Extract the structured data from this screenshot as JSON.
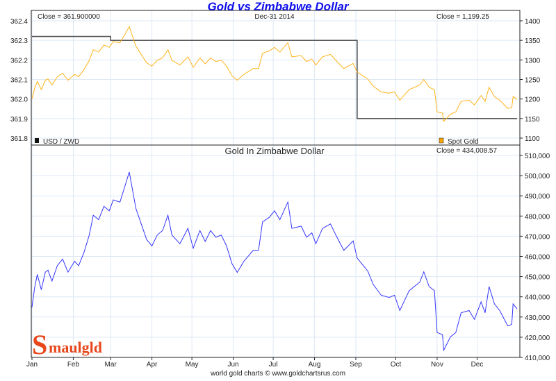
{
  "title": "Gold vs Zimbabwe Dollar",
  "footer": "world gold charts © www.goldchartsrus.com",
  "logo_text": "Smaulgld",
  "chart_data": [
    {
      "type": "line",
      "date_label": "Dec-31  2014",
      "left_close_label": "Close = 361.900000",
      "right_close_label": "Close = 1,199.25",
      "left_axis": {
        "ticks": [
          "362.4",
          "362.3",
          "362.2",
          "362.1",
          "362.0",
          "361.9",
          "361.8"
        ],
        "ylim": [
          361.8,
          362.4
        ]
      },
      "right_axis": {
        "ticks": [
          "1400",
          "1350",
          "1300",
          "1250",
          "1200",
          "1150",
          "1100"
        ],
        "ylim": [
          1100,
          1400
        ]
      },
      "grid": true,
      "legend": {
        "placement": "bottom",
        "left": "USD / ZWD",
        "right": "Spot Gold"
      },
      "series": [
        {
          "name": "USD / ZWD",
          "axis": "left",
          "color": "#555555",
          "step": true,
          "points": [
            [
              "2014-01-01",
              362.32
            ],
            [
              "2014-02-28",
              362.32
            ],
            [
              "2014-03-01",
              362.3
            ],
            [
              "2014-09-01",
              362.3
            ],
            [
              "2014-09-02",
              361.9
            ],
            [
              "2014-12-31",
              361.9
            ]
          ]
        },
        {
          "name": "Spot Gold",
          "axis": "right",
          "color": "#ffb31a",
          "points": [
            [
              "2014-01-01",
              1200
            ],
            [
              "2014-01-03",
              1227
            ],
            [
              "2014-01-05",
              1245
            ],
            [
              "2014-01-08",
              1224
            ],
            [
              "2014-01-11",
              1248
            ],
            [
              "2014-01-13",
              1251
            ],
            [
              "2014-01-16",
              1236
            ],
            [
              "2014-01-20",
              1257
            ],
            [
              "2014-01-24",
              1266
            ],
            [
              "2014-01-28",
              1248
            ],
            [
              "2014-02-02",
              1263
            ],
            [
              "2014-02-05",
              1257
            ],
            [
              "2014-02-09",
              1275
            ],
            [
              "2014-02-13",
              1299
            ],
            [
              "2014-02-16",
              1326
            ],
            [
              "2014-02-20",
              1320
            ],
            [
              "2014-02-24",
              1338
            ],
            [
              "2014-02-28",
              1332
            ],
            [
              "2014-03-03",
              1347
            ],
            [
              "2014-03-08",
              1344
            ],
            [
              "2014-03-12",
              1367
            ],
            [
              "2014-03-15",
              1385
            ],
            [
              "2014-03-20",
              1335
            ],
            [
              "2014-03-24",
              1314
            ],
            [
              "2014-03-28",
              1293
            ],
            [
              "2014-04-01",
              1284
            ],
            [
              "2014-04-05",
              1299
            ],
            [
              "2014-04-09",
              1305
            ],
            [
              "2014-04-13",
              1326
            ],
            [
              "2014-04-16",
              1299
            ],
            [
              "2014-04-22",
              1287
            ],
            [
              "2014-04-28",
              1308
            ],
            [
              "2014-05-02",
              1281
            ],
            [
              "2014-05-07",
              1305
            ],
            [
              "2014-05-11",
              1290
            ],
            [
              "2014-05-15",
              1305
            ],
            [
              "2014-05-19",
              1296
            ],
            [
              "2014-05-23",
              1299
            ],
            [
              "2014-05-27",
              1284
            ],
            [
              "2014-05-31",
              1260
            ],
            [
              "2014-06-04",
              1248
            ],
            [
              "2014-06-09",
              1263
            ],
            [
              "2014-06-16",
              1278
            ],
            [
              "2014-06-20",
              1278
            ],
            [
              "2014-06-23",
              1317
            ],
            [
              "2014-06-28",
              1323
            ],
            [
              "2014-07-02",
              1332
            ],
            [
              "2014-07-06",
              1320
            ],
            [
              "2014-07-12",
              1344
            ],
            [
              "2014-07-15",
              1308
            ],
            [
              "2014-07-22",
              1311
            ],
            [
              "2014-07-26",
              1296
            ],
            [
              "2014-07-30",
              1302
            ],
            [
              "2014-08-02",
              1287
            ],
            [
              "2014-08-07",
              1308
            ],
            [
              "2014-08-13",
              1314
            ],
            [
              "2014-08-17",
              1299
            ],
            [
              "2014-08-23",
              1278
            ],
            [
              "2014-08-30",
              1291
            ],
            [
              "2014-09-02",
              1269
            ],
            [
              "2014-09-10",
              1251
            ],
            [
              "2014-09-14",
              1233
            ],
            [
              "2014-09-20",
              1218
            ],
            [
              "2014-09-26",
              1215
            ],
            [
              "2014-09-30",
              1218
            ],
            [
              "2014-10-04",
              1197
            ],
            [
              "2014-10-11",
              1224
            ],
            [
              "2014-10-19",
              1236
            ],
            [
              "2014-10-22",
              1250
            ],
            [
              "2014-10-26",
              1230
            ],
            [
              "2014-10-30",
              1224
            ],
            [
              "2014-11-01",
              1167
            ],
            [
              "2014-11-05",
              1164
            ],
            [
              "2014-11-06",
              1143
            ],
            [
              "2014-11-11",
              1161
            ],
            [
              "2014-11-15",
              1167
            ],
            [
              "2014-11-19",
              1194
            ],
            [
              "2014-11-25",
              1197
            ],
            [
              "2014-11-29",
              1185
            ],
            [
              "2014-12-04",
              1209
            ],
            [
              "2014-12-07",
              1194
            ],
            [
              "2014-12-10",
              1230
            ],
            [
              "2014-12-14",
              1206
            ],
            [
              "2014-12-18",
              1197
            ],
            [
              "2014-12-24",
              1176
            ],
            [
              "2014-12-27",
              1178
            ],
            [
              "2014-12-28",
              1206
            ],
            [
              "2014-12-31",
              1199.25
            ]
          ]
        }
      ]
    },
    {
      "type": "line",
      "title": "Gold In Zimbabwe Dollar",
      "close_label": "Close = 434,008.57",
      "right_axis": {
        "ticks": [
          "510,000",
          "500,000",
          "490,000",
          "480,000",
          "470,000",
          "460,000",
          "450,000",
          "440,000",
          "430,000",
          "420,000",
          "410,000"
        ],
        "ylim": [
          410000,
          510000
        ]
      },
      "x_ticks": [
        "Jan",
        "Feb",
        "Mar",
        "Apr",
        "May",
        "Jun",
        "Jul",
        "Aug",
        "Sep",
        "Oct",
        "Nov",
        "Dec"
      ],
      "grid": true,
      "series": [
        {
          "color": "#3333ff",
          "points": [
            [
              "2014-01-01",
              434800
            ],
            [
              "2014-01-03",
              444500
            ],
            [
              "2014-01-05",
              451100
            ],
            [
              "2014-01-08",
              443500
            ],
            [
              "2014-01-11",
              452200
            ],
            [
              "2014-01-13",
              453200
            ],
            [
              "2014-01-16",
              447800
            ],
            [
              "2014-01-20",
              455400
            ],
            [
              "2014-01-24",
              458700
            ],
            [
              "2014-01-28",
              452200
            ],
            [
              "2014-02-02",
              457600
            ],
            [
              "2014-02-05",
              455400
            ],
            [
              "2014-02-09",
              461900
            ],
            [
              "2014-02-13",
              470600
            ],
            [
              "2014-02-16",
              480400
            ],
            [
              "2014-02-20",
              478200
            ],
            [
              "2014-02-24",
              484800
            ],
            [
              "2014-02-28",
              482600
            ],
            [
              "2014-03-03",
              488000
            ],
            [
              "2014-03-08",
              486900
            ],
            [
              "2014-03-12",
              495300
            ],
            [
              "2014-03-15",
              501800
            ],
            [
              "2014-03-20",
              483700
            ],
            [
              "2014-03-24",
              476100
            ],
            [
              "2014-03-28",
              468400
            ],
            [
              "2014-04-01",
              465200
            ],
            [
              "2014-04-05",
              470600
            ],
            [
              "2014-04-09",
              472800
            ],
            [
              "2014-04-13",
              480400
            ],
            [
              "2014-04-16",
              470600
            ],
            [
              "2014-04-22",
              466300
            ],
            [
              "2014-04-28",
              473900
            ],
            [
              "2014-05-02",
              464100
            ],
            [
              "2014-05-07",
              472800
            ],
            [
              "2014-05-11",
              467400
            ],
            [
              "2014-05-15",
              472800
            ],
            [
              "2014-05-19",
              469500
            ],
            [
              "2014-05-23",
              470600
            ],
            [
              "2014-05-27",
              465200
            ],
            [
              "2014-05-31",
              456500
            ],
            [
              "2014-06-04",
              452100
            ],
            [
              "2014-06-09",
              457600
            ],
            [
              "2014-06-16",
              463000
            ],
            [
              "2014-06-20",
              463000
            ],
            [
              "2014-06-23",
              477100
            ],
            [
              "2014-06-28",
              479300
            ],
            [
              "2014-07-02",
              482600
            ],
            [
              "2014-07-06",
              478200
            ],
            [
              "2014-07-12",
              486900
            ],
            [
              "2014-07-15",
              473900
            ],
            [
              "2014-07-22",
              475000
            ],
            [
              "2014-07-26",
              469500
            ],
            [
              "2014-07-30",
              471700
            ],
            [
              "2014-08-02",
              466300
            ],
            [
              "2014-08-07",
              473900
            ],
            [
              "2014-08-13",
              476100
            ],
            [
              "2014-08-17",
              470600
            ],
            [
              "2014-08-23",
              463000
            ],
            [
              "2014-08-30",
              467700
            ],
            [
              "2014-09-02",
              459200
            ],
            [
              "2014-09-10",
              452700
            ],
            [
              "2014-09-14",
              446200
            ],
            [
              "2014-09-20",
              440800
            ],
            [
              "2014-09-26",
              439700
            ],
            [
              "2014-09-30",
              440800
            ],
            [
              "2014-10-04",
              433200
            ],
            [
              "2014-10-11",
              443000
            ],
            [
              "2014-10-19",
              447300
            ],
            [
              "2014-10-22",
              452400
            ],
            [
              "2014-10-26",
              445100
            ],
            [
              "2014-10-30",
              443000
            ],
            [
              "2014-11-01",
              422300
            ],
            [
              "2014-11-05",
              421300
            ],
            [
              "2014-11-06",
              413600
            ],
            [
              "2014-11-11",
              420200
            ],
            [
              "2014-11-15",
              422300
            ],
            [
              "2014-11-19",
              432100
            ],
            [
              "2014-11-25",
              433200
            ],
            [
              "2014-11-29",
              428800
            ],
            [
              "2014-12-04",
              437500
            ],
            [
              "2014-12-07",
              432100
            ],
            [
              "2014-12-10",
              445100
            ],
            [
              "2014-12-14",
              436500
            ],
            [
              "2014-12-18",
              433200
            ],
            [
              "2014-12-24",
              425600
            ],
            [
              "2014-12-27",
              426300
            ],
            [
              "2014-12-28",
              436500
            ],
            [
              "2014-12-31",
              434008.57
            ]
          ]
        }
      ]
    }
  ]
}
